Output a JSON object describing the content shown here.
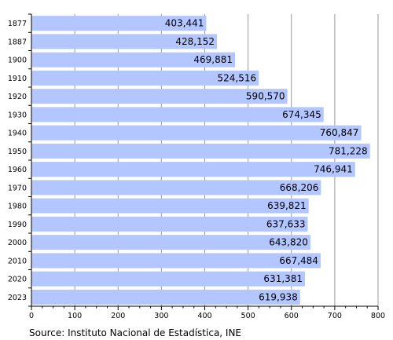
{
  "chart_data": {
    "type": "bar",
    "orientation": "horizontal",
    "categories": [
      "1877",
      "1887",
      "1900",
      "1910",
      "1920",
      "1930",
      "1940",
      "1950",
      "1960",
      "1970",
      "1980",
      "1990",
      "2000",
      "2010",
      "2020",
      "2023"
    ],
    "values": [
      403441,
      428152,
      469881,
      524516,
      590570,
      674345,
      760847,
      781228,
      746941,
      668206,
      639821,
      637633,
      643820,
      667484,
      631381,
      619938
    ],
    "value_labels": [
      "403,441",
      "428,152",
      "469,881",
      "524,516",
      "590,570",
      "674,345",
      "760,847",
      "781,228",
      "746,941",
      "668,206",
      "639,821",
      "637,633",
      "643,820",
      "667,484",
      "631,381",
      "619,938"
    ],
    "x_axis_unit": "thousands",
    "xlim": [
      0,
      800
    ],
    "x_ticks": [
      0,
      100,
      200,
      300,
      400,
      500,
      600,
      700,
      800
    ],
    "grid": true,
    "bar_color": "#b3c6ff",
    "grid_color": "#999999",
    "title": "",
    "xlabel": "",
    "ylabel": ""
  },
  "source_text": "Source: Instituto Nacional de Estadística, INE"
}
